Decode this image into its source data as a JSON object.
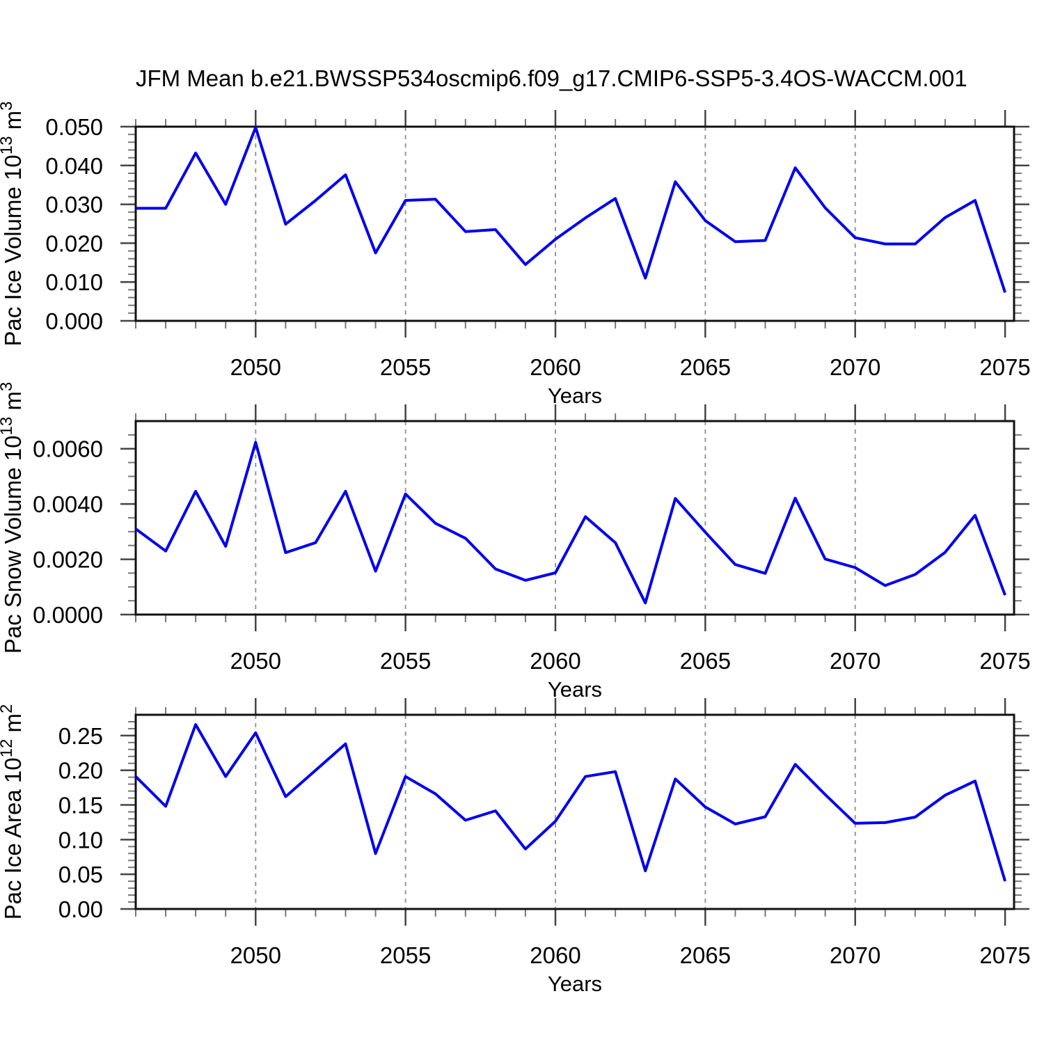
{
  "title": "JFM Mean b.e21.BWSSP534oscmip6.f09_g17.CMIP6-SSP5-3.4OS-WACCM.001",
  "style": {
    "line_color": "#0000ee",
    "box_color": "#111111",
    "major_tick_color": "#444444",
    "minor_tick_color": "#777777",
    "grid_color": "#999999",
    "text_color": "#000000",
    "background": "#ffffff"
  },
  "x_axis": {
    "label": "Years",
    "min": 2046,
    "max": 2075.3,
    "minor_step": 1,
    "major_ticks": [
      2050,
      2055,
      2060,
      2065,
      2070,
      2075
    ],
    "major_labels": [
      "2050",
      "2055",
      "2060",
      "2065",
      "2070",
      "2075"
    ],
    "grid_lines": [
      2050,
      2055,
      2060,
      2065,
      2070
    ]
  },
  "chart_data": [
    {
      "type": "line",
      "name": "pac-ice-volume",
      "ylabel": "Pac Ice Volume 10^13 m^3",
      "ylabel_parts": [
        {
          "text": "Pac Ice Volume 10"
        },
        {
          "text": "13",
          "sup": true
        },
        {
          "text": " m"
        },
        {
          "text": "3",
          "sup": true
        }
      ],
      "xlabel": "Years",
      "ylim": [
        0,
        0.05
      ],
      "yminor_step": 0.002,
      "ymajor": [
        0,
        0.01,
        0.02,
        0.03,
        0.04,
        0.05
      ],
      "ymajor_labels": [
        "0.000",
        "0.010",
        "0.020",
        "0.030",
        "0.040",
        "0.050"
      ],
      "x": [
        2046,
        2047,
        2048,
        2049,
        2050,
        2051,
        2052,
        2053,
        2054,
        2055,
        2056,
        2057,
        2058,
        2059,
        2060,
        2061,
        2062,
        2063,
        2064,
        2065,
        2066,
        2067,
        2068,
        2069,
        2070,
        2071,
        2072,
        2073,
        2074,
        2075
      ],
      "values": [
        0.029,
        0.029,
        0.0432,
        0.03,
        0.0498,
        0.0249,
        0.031,
        0.0376,
        0.0175,
        0.031,
        0.0313,
        0.023,
        0.0235,
        0.0145,
        0.021,
        0.0265,
        0.0315,
        0.011,
        0.0358,
        0.0258,
        0.0204,
        0.0207,
        0.0394,
        0.0291,
        0.0214,
        0.0198,
        0.0198,
        0.0266,
        0.031,
        0.0073
      ]
    },
    {
      "type": "line",
      "name": "pac-snow-volume",
      "ylabel": "Pac Snow Volume 10^13 m^3",
      "ylabel_parts": [
        {
          "text": "Pac Snow Volume 10"
        },
        {
          "text": "13",
          "sup": true
        },
        {
          "text": " m"
        },
        {
          "text": "3",
          "sup": true
        }
      ],
      "xlabel": "Years",
      "ylim": [
        0,
        0.007
      ],
      "yminor_step": 0.0005,
      "ymajor": [
        0,
        0.002,
        0.004,
        0.006
      ],
      "ymajor_labels": [
        "0.0000",
        "0.0020",
        "0.0040",
        "0.0060"
      ],
      "x": [
        2046,
        2047,
        2048,
        2049,
        2050,
        2051,
        2052,
        2053,
        2054,
        2055,
        2056,
        2057,
        2058,
        2059,
        2060,
        2061,
        2062,
        2063,
        2064,
        2065,
        2066,
        2067,
        2068,
        2069,
        2070,
        2071,
        2072,
        2073,
        2074,
        2075
      ],
      "values": [
        0.0031,
        0.0023,
        0.00446,
        0.00247,
        0.00623,
        0.00224,
        0.0026,
        0.00446,
        0.00157,
        0.00436,
        0.0033,
        0.00276,
        0.00165,
        0.00124,
        0.00151,
        0.00354,
        0.0026,
        0.00042,
        0.0042,
        0.00298,
        0.00181,
        0.00149,
        0.00421,
        0.00201,
        0.0017,
        0.00105,
        0.00145,
        0.00225,
        0.00359,
        0.0007
      ]
    },
    {
      "type": "line",
      "name": "pac-ice-area",
      "ylabel": "Pac Ice Area 10^12 m^2",
      "ylabel_parts": [
        {
          "text": "Pac Ice Area 10"
        },
        {
          "text": "12",
          "sup": true
        },
        {
          "text": " m"
        },
        {
          "text": "2",
          "sup": true
        }
      ],
      "xlabel": "Years",
      "ylim": [
        0,
        0.28
      ],
      "yminor_step": 0.01,
      "ymajor": [
        0,
        0.05,
        0.1,
        0.15,
        0.2,
        0.25
      ],
      "ymajor_labels": [
        "0.00",
        "0.05",
        "0.10",
        "0.15",
        "0.20",
        "0.25"
      ],
      "x": [
        2046,
        2047,
        2048,
        2049,
        2050,
        2051,
        2052,
        2053,
        2054,
        2055,
        2056,
        2057,
        2058,
        2059,
        2060,
        2061,
        2062,
        2063,
        2064,
        2065,
        2066,
        2067,
        2068,
        2069,
        2070,
        2071,
        2072,
        2073,
        2074,
        2075
      ],
      "values": [
        0.191,
        0.148,
        0.266,
        0.191,
        0.254,
        0.162,
        0.2,
        0.238,
        0.08,
        0.191,
        0.166,
        0.128,
        0.1415,
        0.0865,
        0.1265,
        0.191,
        0.198,
        0.055,
        0.1875,
        0.147,
        0.1225,
        0.133,
        0.2085,
        0.165,
        0.1235,
        0.1245,
        0.1325,
        0.164,
        0.1845,
        0.04
      ]
    }
  ]
}
